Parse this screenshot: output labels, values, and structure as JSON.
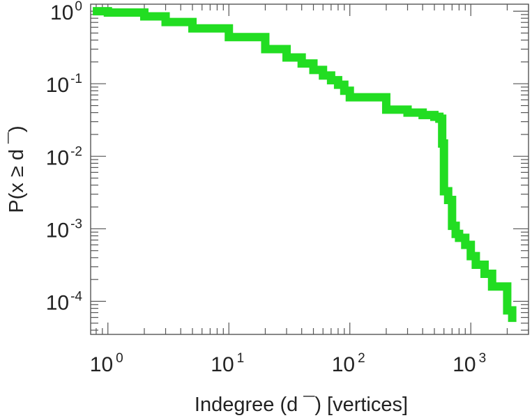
{
  "chart_data": {
    "type": "line",
    "title": "",
    "xlabel": "Indegree (d ¯) [vertices]",
    "ylabel": "P(x ≥ d ¯)",
    "x_scale": "log",
    "y_scale": "log",
    "xlim": [
      0.72,
      3000
    ],
    "ylim": [
      3.5e-05,
      1.25
    ],
    "x_ticks": [
      {
        "value": 1,
        "base": "10",
        "exp": "0"
      },
      {
        "value": 10,
        "base": "10",
        "exp": "1"
      },
      {
        "value": 100,
        "base": "10",
        "exp": "2"
      },
      {
        "value": 1000,
        "base": "10",
        "exp": "3"
      }
    ],
    "y_ticks": [
      {
        "value": 1,
        "base": "10",
        "exp": "0"
      },
      {
        "value": 0.1,
        "base": "10",
        "exp": "-1"
      },
      {
        "value": 0.01,
        "base": "10",
        "exp": "-2"
      },
      {
        "value": 0.001,
        "base": "10",
        "exp": "-3"
      },
      {
        "value": 0.0001,
        "base": "10",
        "exp": "-4"
      }
    ],
    "grid": false,
    "legend": "none",
    "series": [
      {
        "color": "#22dd22",
        "step": true,
        "x": [
          0.75,
          1,
          2,
          3,
          5,
          10,
          20,
          30,
          40,
          50,
          60,
          70,
          80,
          90,
          100,
          200,
          300,
          400,
          500,
          550,
          580,
          600,
          650,
          700,
          750,
          800,
          900,
          1000,
          1100,
          1300,
          1500,
          2000,
          2200
        ],
        "y": [
          1.0,
          0.96,
          0.85,
          0.71,
          0.58,
          0.44,
          0.3,
          0.23,
          0.19,
          0.155,
          0.13,
          0.112,
          0.097,
          0.08,
          0.065,
          0.044,
          0.04,
          0.037,
          0.035,
          0.033,
          0.015,
          0.0033,
          0.0025,
          0.0011,
          0.00085,
          0.00075,
          0.0006,
          0.00042,
          0.00032,
          0.00024,
          0.00016,
          7.5e-05,
          5.2e-05
        ]
      }
    ]
  }
}
